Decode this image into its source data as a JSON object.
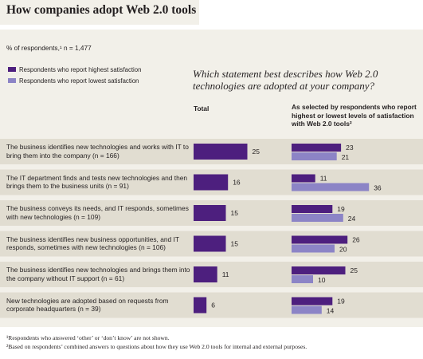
{
  "title": "How companies adopt Web 2.0 tools",
  "respondents_note": "% of respondents,¹ n = 1,477",
  "question": "Which statement best describes how Web 2.0 technologies are adopted at your company?",
  "columns": {
    "total": "Total",
    "selected": "As selected by respondents who report highest or lowest levels of satisfaction with Web 2.0 tools²"
  },
  "colors": {
    "total": "#4d1f7e",
    "highest": "#4d1f7e",
    "lowest": "#8c84c6",
    "panel": "#f2f0e9",
    "row_band": "#e1ddd1"
  },
  "footnotes": [
    "¹Respondents who answered ‘other’ or ‘don’t know’ are not shown.",
    "²Based on respondents’ combined answers to questions about how they use Web 2.0 tools for internal and external purposes."
  ],
  "chart_data": {
    "type": "bar",
    "categories": [
      "The business identifies new technologies and works with IT to bring them into the company (n = 166)",
      "The IT department finds and tests new technologies and then brings them to the business units (n = 91)",
      "The business conveys its needs, and IT responds, sometimes with new technologies (n = 109)",
      "The business identifies new business opportunities, and IT responds, sometimes with new technologies (n = 106)",
      "The business identifies new technologies and brings them into the company without IT support (n = 61)",
      "New technologies are adopted based on requests from corporate headquarters (n = 39)"
    ],
    "series": [
      {
        "name": "Total",
        "values": [
          25,
          16,
          15,
          15,
          11,
          6
        ]
      },
      {
        "name": "Respondents who report highest satisfaction",
        "values": [
          23,
          11,
          19,
          26,
          25,
          19
        ]
      },
      {
        "name": "Respondents who report lowest satisfaction",
        "values": [
          21,
          36,
          24,
          20,
          10,
          14
        ]
      }
    ]
  }
}
